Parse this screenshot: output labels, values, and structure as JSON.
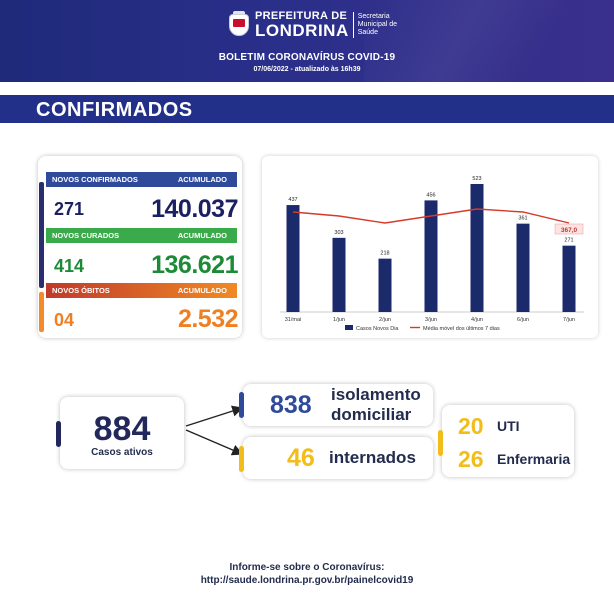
{
  "header": {
    "org_top": "PREFEITURA DE",
    "org_city": "LONDRINA",
    "secretaria": [
      "Secretaria",
      "Municipal de",
      "Saúde"
    ],
    "title": "BOLETIM CORONAVÍRUS COVID-19",
    "date": "07/06/2022 - atualizado às 16h39"
  },
  "section_title": "CONFIRMADOS",
  "stats": {
    "confirmados": {
      "label": "NOVOS CONFIRMADOS",
      "acc_label": "ACUMULADO",
      "new": "271",
      "total": "140.037",
      "color": "#2f4a9a",
      "text_color": "#1b2060",
      "accent": "#2a2d6e"
    },
    "curados": {
      "label": "NOVOS CURADOS",
      "acc_label": "ACUMULADO",
      "new": "414",
      "total": "136.621",
      "color": "#3aaa4a",
      "text_color": "#1d8a37",
      "accent": "#2a2d6e"
    },
    "obitos": {
      "label": "NOVOS ÓBITOS",
      "acc_label": "ACUMULADO",
      "new": "04",
      "total": "2.532",
      "color": "#e8761e",
      "text_color": "#f07f22",
      "accent": "#f28c28"
    }
  },
  "chart_data": {
    "type": "bar",
    "categories": [
      "31/mai",
      "1/jun",
      "2/jun",
      "3/jun",
      "4/jun",
      "6/jun",
      "7/jun"
    ],
    "series": [
      {
        "name": "Casos Novos Dia",
        "values": [
          437,
          303,
          218,
          456,
          523,
          361,
          271
        ],
        "color": "#1b2a6b"
      },
      {
        "name": "Média móvel dos últimos 7 dias",
        "type": "line",
        "values": [
          null,
          null,
          null,
          null,
          null,
          null,
          367.0
        ],
        "color": "#d53a2a"
      }
    ],
    "last_avg_label": "367,0",
    "legend": "bottom",
    "grid": false
  },
  "summary": {
    "ativos_value": "884",
    "ativos_label": "Casos ativos",
    "isolamento_value": "838",
    "isolamento_label_1": "isolamento",
    "isolamento_label_2": "domiciliar",
    "internados_value": "46",
    "internados_label": "internados",
    "uti_value": "20",
    "uti_label": "UTI",
    "enfermaria_value": "26",
    "enfermaria_label": "Enfermaria",
    "navy": "#22285a",
    "blue": "#2f4a9a",
    "yellow": "#f2bd1a",
    "dark_text": "#232c4e"
  },
  "footer": {
    "line1": "Informe-se sobre o Coronavírus:",
    "line2": "http://saude.londrina.pr.gov.br/painelcovid19"
  }
}
